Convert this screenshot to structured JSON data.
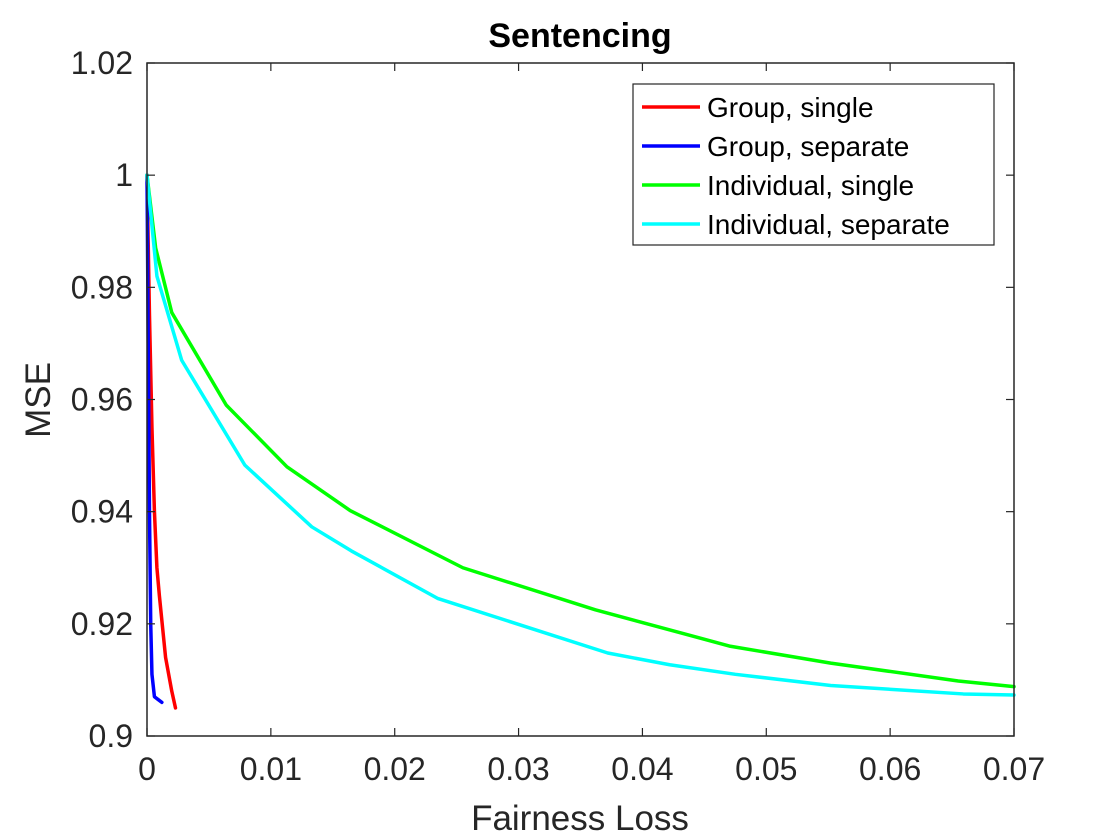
{
  "chart_data": {
    "type": "line",
    "title": "Sentencing",
    "xlabel": "Fairness Loss",
    "ylabel": "MSE",
    "xlim": [
      0,
      0.07
    ],
    "ylim": [
      0.9,
      1.02
    ],
    "xticks": [
      0,
      0.01,
      0.02,
      0.03,
      0.04,
      0.05,
      0.06,
      0.07
    ],
    "xtick_labels": [
      "0",
      "0.01",
      "0.02",
      "0.03",
      "0.04",
      "0.05",
      "0.06",
      "0.07"
    ],
    "yticks": [
      0.9,
      0.92,
      0.94,
      0.96,
      0.98,
      1,
      1.02
    ],
    "ytick_labels": [
      "0.9",
      "0.92",
      "0.94",
      "0.96",
      "0.98",
      "1",
      "1.02"
    ],
    "grid": false,
    "legend_position": "top-right",
    "series": [
      {
        "name": "Group, single",
        "color": "#ff0000",
        "x": [
          0,
          0.0002,
          0.0004,
          0.0006,
          0.0008,
          0.001,
          0.0015,
          0.002,
          0.0023
        ],
        "y": [
          1,
          0.975,
          0.955,
          0.94,
          0.93,
          0.925,
          0.914,
          0.908,
          0.905
        ]
      },
      {
        "name": "Group, separate",
        "color": "#0000ff",
        "x": [
          0,
          0.0001,
          0.0002,
          0.0003,
          0.0004,
          0.0006,
          0.0009,
          0.0012
        ],
        "y": [
          1,
          0.97,
          0.94,
          0.92,
          0.911,
          0.907,
          0.9065,
          0.906
        ]
      },
      {
        "name": "Individual, single",
        "color": "#00ff00",
        "x": [
          0,
          0.0007,
          0.002,
          0.0064,
          0.0113,
          0.0164,
          0.0255,
          0.0362,
          0.0471,
          0.0552,
          0.0655,
          0.07
        ],
        "y": [
          1,
          0.987,
          0.9755,
          0.959,
          0.948,
          0.9402,
          0.93,
          0.9225,
          0.916,
          0.913,
          0.9098,
          0.9088
        ]
      },
      {
        "name": "Individual, separate",
        "color": "#00ffff",
        "x": [
          0,
          0.0008,
          0.0028,
          0.0079,
          0.0133,
          0.0165,
          0.0235,
          0.0372,
          0.0422,
          0.0475,
          0.0552,
          0.0659,
          0.07
        ],
        "y": [
          1,
          0.982,
          0.967,
          0.9483,
          0.9373,
          0.933,
          0.9245,
          0.9148,
          0.9127,
          0.911,
          0.909,
          0.9075,
          0.9073
        ]
      }
    ]
  }
}
